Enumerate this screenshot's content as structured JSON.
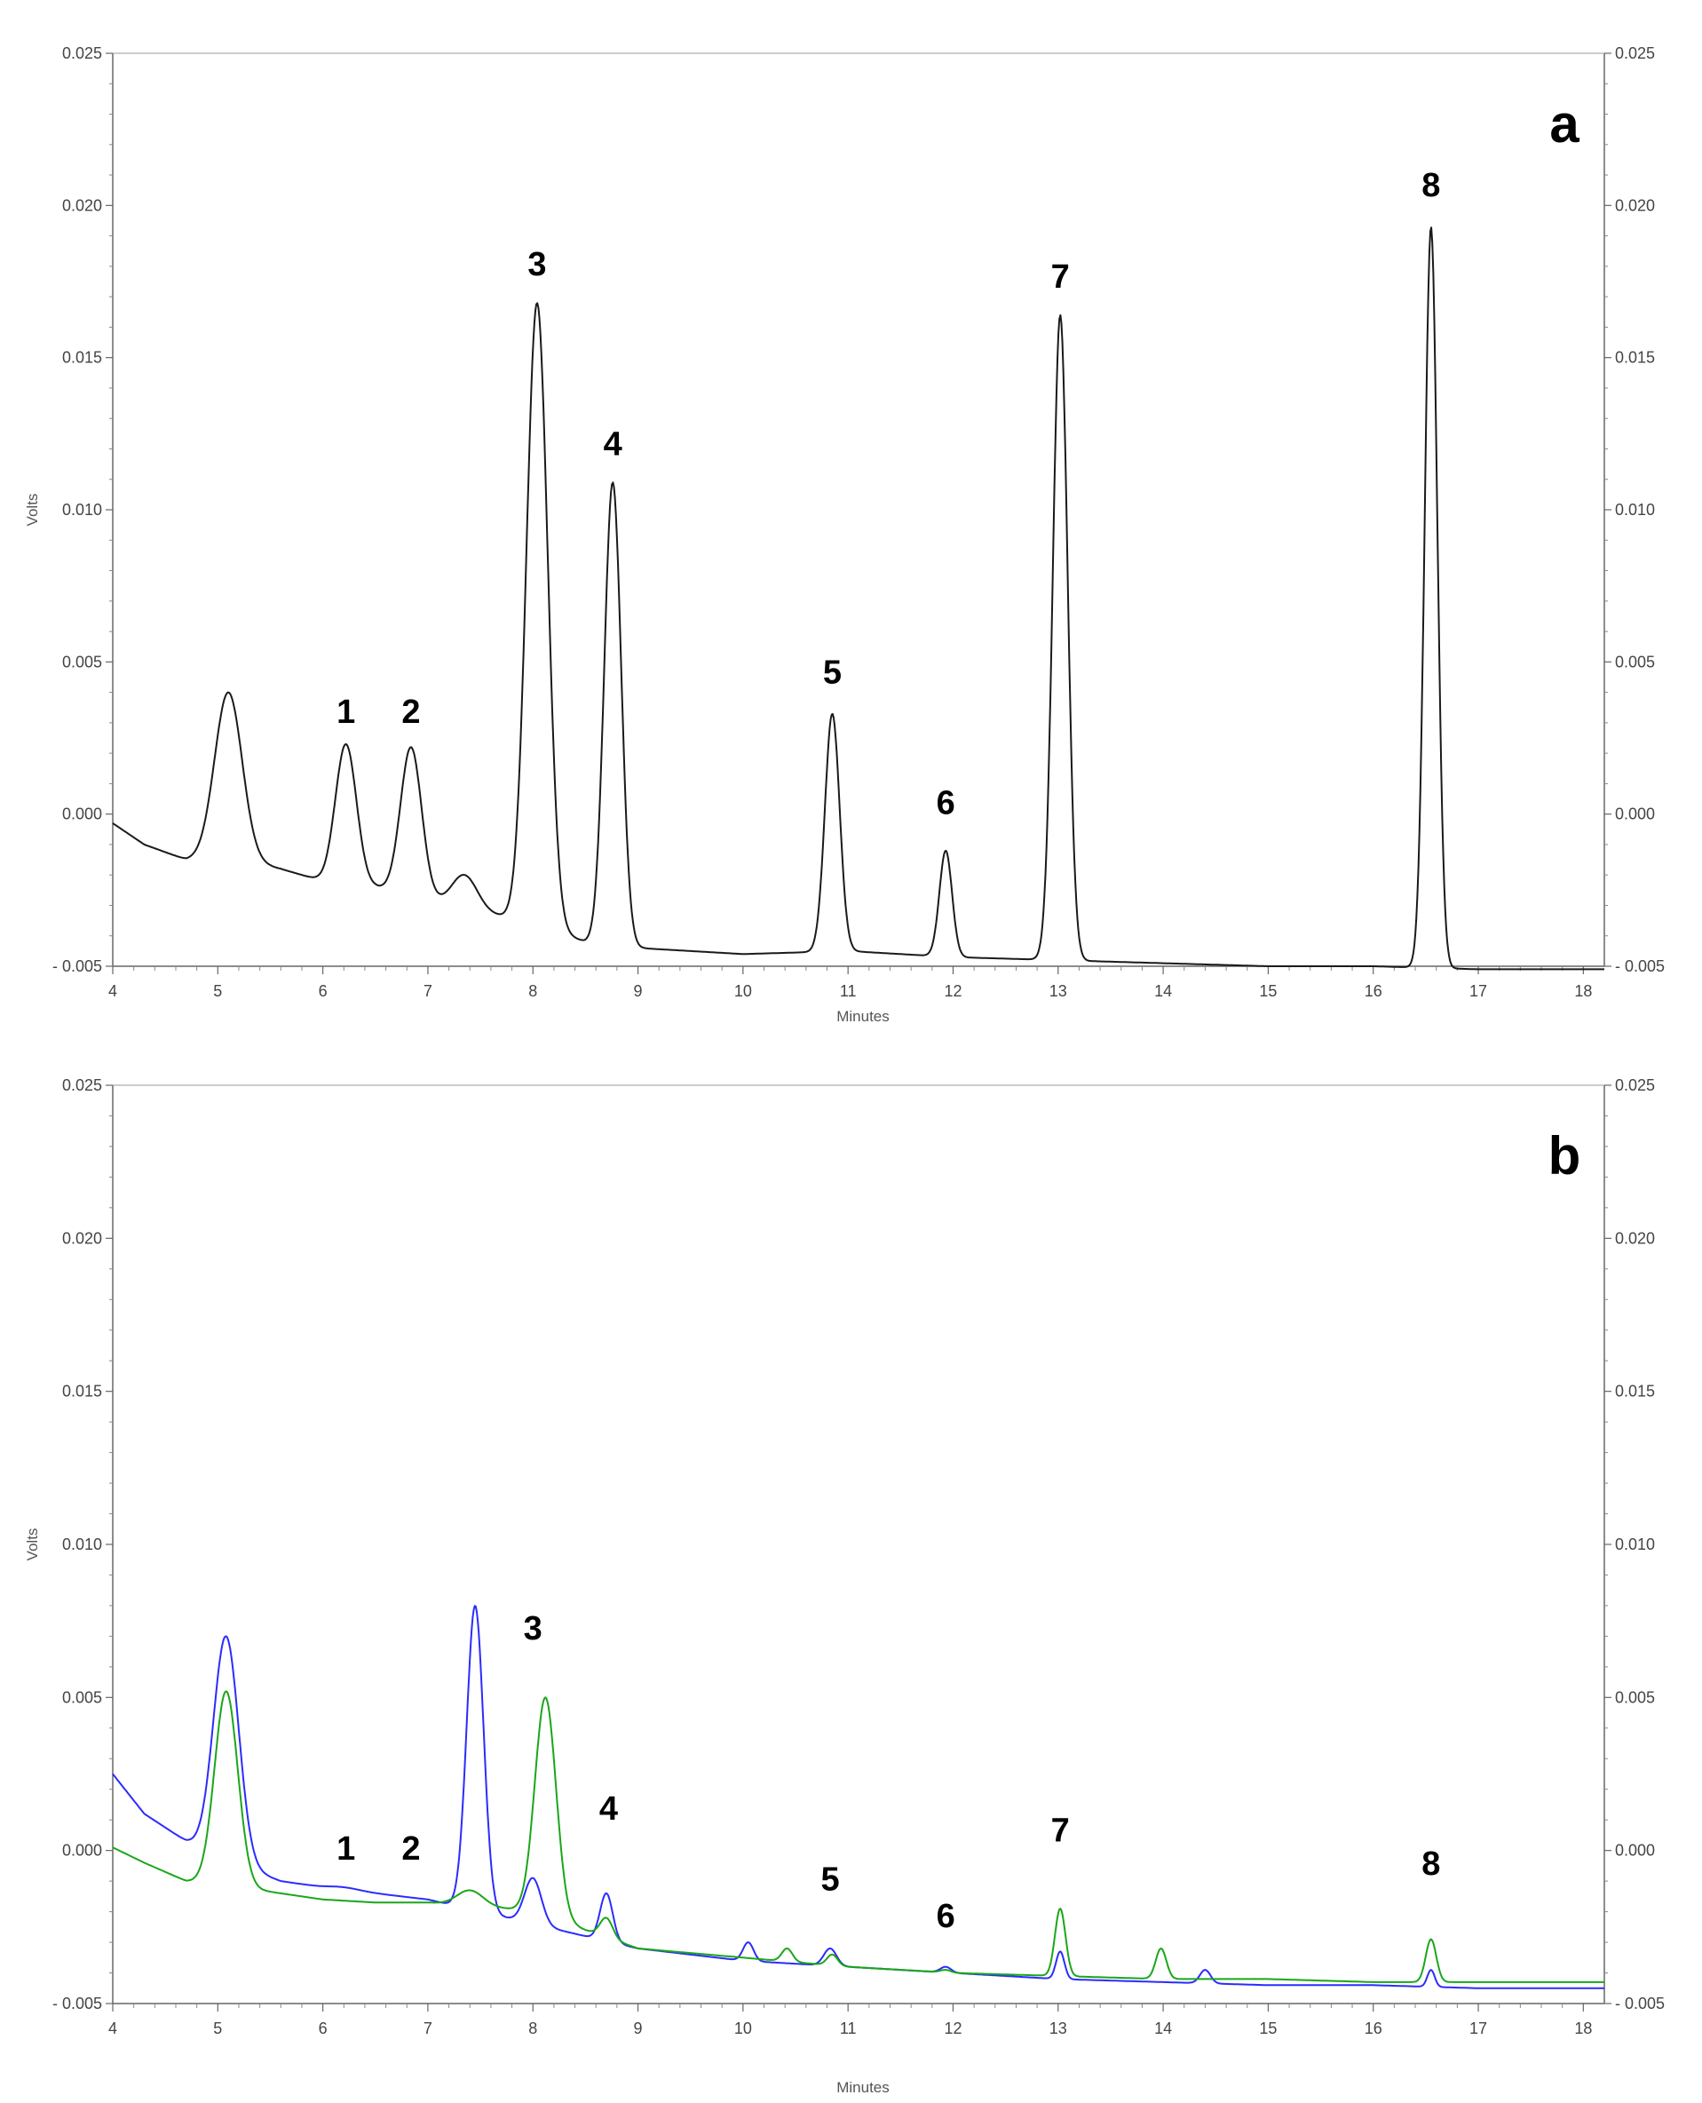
{
  "chart_data": [
    {
      "panel_label": "a",
      "type": "line",
      "xlabel": "Minutes",
      "ylabel": "Volts",
      "xlim": [
        4,
        18.2
      ],
      "ylim": [
        -0.005,
        0.025
      ],
      "x_ticks": [
        "4",
        "5",
        "6",
        "7",
        "8",
        "9",
        "10",
        "11",
        "12",
        "13",
        "14",
        "15",
        "16",
        "17",
        "18"
      ],
      "y_ticks": [
        "- 0.005",
        "0.000",
        "0.005",
        "0.010",
        "0.015",
        "0.020",
        "0.025"
      ],
      "grid": false,
      "baseline": [
        [
          4.0,
          -0.0003
        ],
        [
          4.3,
          -0.001
        ],
        [
          4.7,
          -0.0015
        ],
        [
          5.2,
          -0.0015
        ],
        [
          5.6,
          -0.0018
        ],
        [
          6.0,
          -0.0022
        ],
        [
          6.5,
          -0.0024
        ],
        [
          7.0,
          -0.0028
        ],
        [
          7.5,
          -0.0032
        ],
        [
          8.0,
          -0.0036
        ],
        [
          8.5,
          -0.0042
        ],
        [
          9.0,
          -0.0044
        ],
        [
          10.0,
          -0.0046
        ],
        [
          11.0,
          -0.0045
        ],
        [
          12.0,
          -0.0047
        ],
        [
          13.0,
          -0.0048
        ],
        [
          14.0,
          -0.0049
        ],
        [
          15.0,
          -0.005
        ],
        [
          16.0,
          -0.005
        ],
        [
          17.0,
          -0.0051
        ],
        [
          18.2,
          -0.0051
        ]
      ],
      "series": [
        {
          "color": "#1a1a1a",
          "peaks": [
            {
              "x": 5.1,
              "y": 0.004,
              "w": 0.13
            },
            {
              "label": "1",
              "x": 6.22,
              "y": 0.0023,
              "w": 0.1
            },
            {
              "label": "2",
              "x": 6.84,
              "y": 0.0022,
              "w": 0.1
            },
            {
              "x": 7.35,
              "y": -0.002,
              "w": 0.12
            },
            {
              "label": "3",
              "x": 8.04,
              "y": 0.0168,
              "w": 0.1
            },
            {
              "label": "4",
              "x": 8.76,
              "y": 0.0109,
              "w": 0.08
            },
            {
              "label": "5",
              "x": 10.85,
              "y": 0.0033,
              "w": 0.07
            },
            {
              "label": "6",
              "x": 11.93,
              "y": -0.0012,
              "w": 0.06
            },
            {
              "label": "7",
              "x": 13.02,
              "y": 0.0164,
              "w": 0.07
            },
            {
              "label": "8",
              "x": 16.55,
              "y": 0.0193,
              "w": 0.06
            }
          ]
        }
      ],
      "annotations": [
        {
          "text": "1",
          "x": 6.22,
          "y": 0.003
        },
        {
          "text": "2",
          "x": 6.84,
          "y": 0.003
        },
        {
          "text": "3",
          "x": 8.04,
          "y": 0.0177
        },
        {
          "text": "4",
          "x": 8.76,
          "y": 0.0118
        },
        {
          "text": "5",
          "x": 10.85,
          "y": 0.0043
        },
        {
          "text": "6",
          "x": 11.93,
          "y": 0.0
        },
        {
          "text": "7",
          "x": 13.02,
          "y": 0.0173
        },
        {
          "text": "8",
          "x": 16.55,
          "y": 0.0203
        }
      ]
    },
    {
      "panel_label": "b",
      "type": "line",
      "xlabel": "Minutes",
      "ylabel": "Volts",
      "xlim": [
        4,
        18.2
      ],
      "ylim": [
        -0.005,
        0.025
      ],
      "x_ticks": [
        "4",
        "5",
        "6",
        "7",
        "8",
        "9",
        "10",
        "11",
        "12",
        "13",
        "14",
        "15",
        "16",
        "17",
        "18"
      ],
      "y_ticks": [
        "- 0.005",
        "0.000",
        "0.005",
        "0.010",
        "0.015",
        "0.020",
        "0.025"
      ],
      "grid": false,
      "series": [
        {
          "color": "#2b2bff",
          "baseline": [
            [
              4.0,
              0.0025
            ],
            [
              4.3,
              0.0012
            ],
            [
              4.7,
              0.0003
            ],
            [
              5.2,
              -0.0005
            ],
            [
              5.6,
              -0.001
            ],
            [
              6.0,
              -0.0012
            ],
            [
              6.5,
              -0.0014
            ],
            [
              7.0,
              -0.0016
            ],
            [
              7.5,
              -0.002
            ],
            [
              8.0,
              -0.0024
            ],
            [
              8.5,
              -0.0028
            ],
            [
              9.0,
              -0.0032
            ],
            [
              10.0,
              -0.0036
            ],
            [
              11.0,
              -0.0038
            ],
            [
              12.0,
              -0.004
            ],
            [
              13.0,
              -0.0042
            ],
            [
              14.0,
              -0.0043
            ],
            [
              15.0,
              -0.0044
            ],
            [
              16.0,
              -0.0044
            ],
            [
              17.0,
              -0.0045
            ],
            [
              18.2,
              -0.0045
            ]
          ],
          "peaks": [
            {
              "x": 5.08,
              "y": 0.007,
              "w": 0.12
            },
            {
              "x": 6.2,
              "y": -0.0012,
              "w": 0.15
            },
            {
              "x": 7.45,
              "y": 0.008,
              "w": 0.08
            },
            {
              "x": 8.0,
              "y": -0.0009,
              "w": 0.08
            },
            {
              "x": 8.7,
              "y": -0.0014,
              "w": 0.06
            },
            {
              "x": 10.05,
              "y": -0.003,
              "w": 0.05
            },
            {
              "x": 10.83,
              "y": -0.0032,
              "w": 0.06
            },
            {
              "x": 11.93,
              "y": -0.0038,
              "w": 0.05
            },
            {
              "x": 13.02,
              "y": -0.0033,
              "w": 0.04
            },
            {
              "x": 14.4,
              "y": -0.0039,
              "w": 0.05
            },
            {
              "x": 16.55,
              "y": -0.0039,
              "w": 0.035
            }
          ]
        },
        {
          "color": "#1aa61a",
          "baseline": [
            [
              4.0,
              0.0001
            ],
            [
              4.3,
              -0.0004
            ],
            [
              4.7,
              -0.001
            ],
            [
              5.2,
              -0.0012
            ],
            [
              5.6,
              -0.0014
            ],
            [
              6.0,
              -0.0016
            ],
            [
              6.5,
              -0.0017
            ],
            [
              7.0,
              -0.0017
            ],
            [
              7.5,
              -0.0018
            ],
            [
              8.0,
              -0.002
            ],
            [
              8.5,
              -0.0026
            ],
            [
              9.0,
              -0.0032
            ],
            [
              10.0,
              -0.0035
            ],
            [
              11.0,
              -0.0038
            ],
            [
              12.0,
              -0.004
            ],
            [
              13.0,
              -0.0041
            ],
            [
              14.0,
              -0.0042
            ],
            [
              15.0,
              -0.0042
            ],
            [
              16.0,
              -0.0043
            ],
            [
              17.0,
              -0.0043
            ],
            [
              18.2,
              -0.0043
            ]
          ],
          "peaks": [
            {
              "x": 5.08,
              "y": 0.0052,
              "w": 0.11
            },
            {
              "x": 7.4,
              "y": -0.0013,
              "w": 0.12
            },
            {
              "x": 8.12,
              "y": 0.005,
              "w": 0.1
            },
            {
              "x": 8.7,
              "y": -0.0022,
              "w": 0.06
            },
            {
              "x": 10.42,
              "y": -0.0032,
              "w": 0.05
            },
            {
              "x": 10.85,
              "y": -0.0034,
              "w": 0.05
            },
            {
              "x": 11.93,
              "y": -0.0039,
              "w": 0.05
            },
            {
              "x": 13.02,
              "y": -0.0019,
              "w": 0.05
            },
            {
              "x": 13.98,
              "y": -0.0032,
              "w": 0.05
            },
            {
              "x": 16.55,
              "y": -0.0029,
              "w": 0.05
            }
          ]
        }
      ],
      "annotations": [
        {
          "text": "1",
          "x": 6.22,
          "y": -0.0003
        },
        {
          "text": "2",
          "x": 6.84,
          "y": -0.0003
        },
        {
          "text": "3",
          "x": 8.0,
          "y": 0.0069
        },
        {
          "text": "4",
          "x": 8.72,
          "y": 0.001
        },
        {
          "text": "5",
          "x": 10.83,
          "y": -0.0013
        },
        {
          "text": "6",
          "x": 11.93,
          "y": -0.0025
        },
        {
          "text": "7",
          "x": 13.02,
          "y": 0.0003
        },
        {
          "text": "8",
          "x": 16.55,
          "y": -0.0008
        }
      ]
    }
  ]
}
